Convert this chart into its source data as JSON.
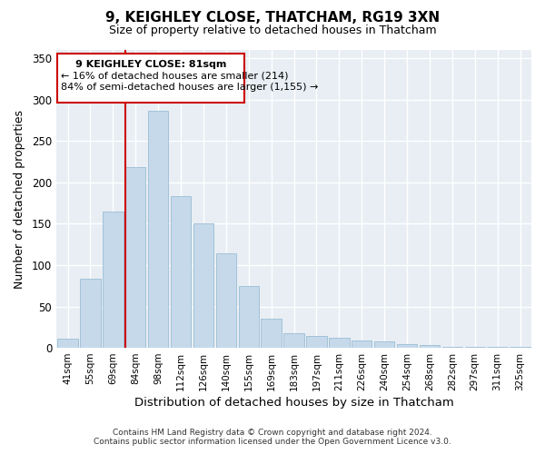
{
  "title": "9, KEIGHLEY CLOSE, THATCHAM, RG19 3XN",
  "subtitle": "Size of property relative to detached houses in Thatcham",
  "xlabel": "Distribution of detached houses by size in Thatcham",
  "ylabel": "Number of detached properties",
  "bar_color": "#c5d9ea",
  "bar_edge_color": "#9bbdd4",
  "categories": [
    "41sqm",
    "55sqm",
    "69sqm",
    "84sqm",
    "98sqm",
    "112sqm",
    "126sqm",
    "140sqm",
    "155sqm",
    "169sqm",
    "183sqm",
    "197sqm",
    "211sqm",
    "226sqm",
    "240sqm",
    "254sqm",
    "268sqm",
    "282sqm",
    "297sqm",
    "311sqm",
    "325sqm"
  ],
  "values": [
    11,
    84,
    165,
    218,
    286,
    183,
    150,
    114,
    75,
    35,
    18,
    14,
    12,
    9,
    8,
    5,
    3,
    1,
    1,
    1,
    1
  ],
  "ylim": [
    0,
    360
  ],
  "yticks": [
    0,
    50,
    100,
    150,
    200,
    250,
    300,
    350
  ],
  "vline_index": 3,
  "annotation_line1": "9 KEIGHLEY CLOSE: 81sqm",
  "annotation_line2": "← 16% of detached houses are smaller (214)",
  "annotation_line3": "84% of semi-detached houses are larger (1,155) →",
  "vline_color": "#cc0000",
  "footnote1": "Contains HM Land Registry data © Crown copyright and database right 2024.",
  "footnote2": "Contains public sector information licensed under the Open Government Licence v3.0.",
  "background_color": "#e8eef4"
}
